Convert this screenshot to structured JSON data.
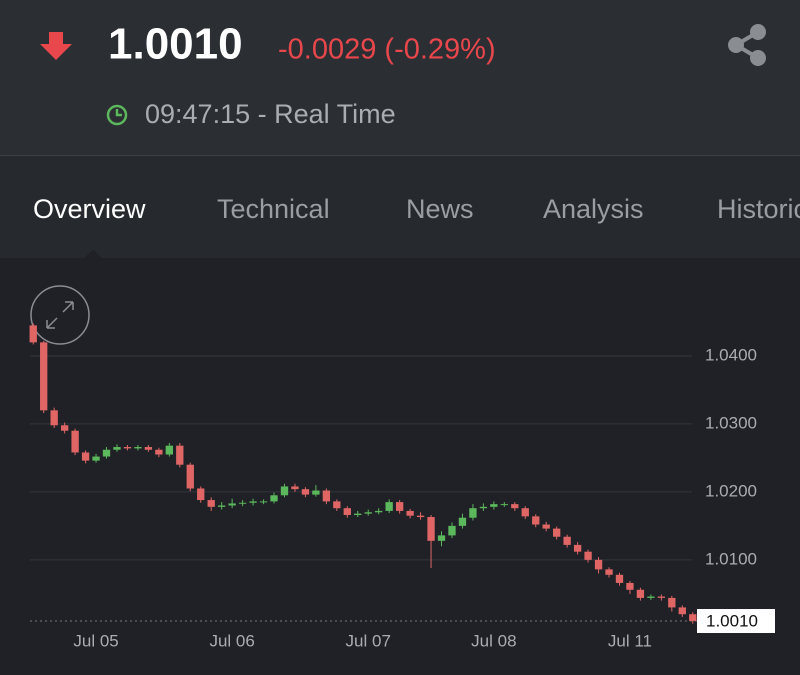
{
  "header": {
    "price": "1.0010",
    "change": "-0.0029 (-0.29%)",
    "time": "09:47:15 - Real Time"
  },
  "tabs": [
    "Overview",
    "Technical",
    "News",
    "Analysis",
    "Historical"
  ],
  "chart_data": {
    "type": "candlestick",
    "categories": [
      null,
      null,
      null,
      null,
      null,
      null,
      "Jul 05",
      null,
      null,
      null,
      null,
      null,
      null,
      null,
      null,
      null,
      null,
      null,
      null,
      "Jul 06",
      null,
      null,
      null,
      null,
      null,
      null,
      null,
      null,
      null,
      null,
      null,
      null,
      "Jul 07",
      null,
      null,
      null,
      null,
      null,
      null,
      null,
      null,
      null,
      null,
      null,
      "Jul 08",
      null,
      null,
      null,
      null,
      null,
      null,
      null,
      null,
      null,
      null,
      null,
      null,
      "Jul 11",
      null,
      null,
      null,
      null,
      null,
      null
    ],
    "open": [
      1.0445,
      1.042,
      1.032,
      1.0298,
      1.029,
      1.0258,
      1.0246,
      1.0252,
      1.0262,
      1.0266,
      1.0264,
      1.0266,
      1.0262,
      1.0255,
      1.0268,
      1.024,
      1.0205,
      1.0188,
      1.0178,
      1.018,
      1.0183,
      1.0184,
      1.0186,
      1.0186,
      1.0195,
      1.0208,
      1.0204,
      1.0196,
      1.0202,
      1.0186,
      1.0176,
      1.0166,
      1.0168,
      1.017,
      1.0172,
      1.0185,
      1.0172,
      1.0165,
      1.0163,
      1.0128,
      1.0136,
      1.015,
      1.0162,
      1.0176,
      1.0178,
      1.0182,
      1.0182,
      1.0176,
      1.0164,
      1.0152,
      1.0146,
      1.0134,
      1.0122,
      1.0112,
      1.01,
      1.0086,
      1.0078,
      1.0066,
      1.0056,
      1.0044,
      1.0046,
      1.0044,
      1.003,
      1.002
    ],
    "high": [
      1.0448,
      1.0422,
      1.0324,
      1.0302,
      1.0293,
      1.0261,
      1.0256,
      1.0266,
      1.027,
      1.0269,
      1.0269,
      1.0269,
      1.0265,
      1.0272,
      1.0272,
      1.0243,
      1.0208,
      1.0192,
      1.0185,
      1.019,
      1.0188,
      1.019,
      1.0189,
      1.0199,
      1.0212,
      1.0212,
      1.0207,
      1.021,
      1.0205,
      1.0189,
      1.0179,
      1.0172,
      1.0174,
      1.0176,
      1.0189,
      1.0188,
      1.0175,
      1.017,
      1.0166,
      1.0142,
      1.0155,
      1.0168,
      1.0182,
      1.0183,
      1.0186,
      1.0185,
      1.0185,
      1.0179,
      1.0167,
      1.0156,
      1.0149,
      1.0137,
      1.0126,
      1.0115,
      1.0104,
      1.0089,
      1.0081,
      1.0069,
      1.0059,
      1.0049,
      1.0049,
      1.0047,
      1.0033,
      1.0023
    ],
    "low": [
      1.0417,
      1.0316,
      1.0294,
      1.0286,
      1.0254,
      1.0242,
      1.0243,
      1.0249,
      1.0259,
      1.0261,
      1.0261,
      1.0259,
      1.0251,
      1.0252,
      1.0236,
      1.0201,
      1.0184,
      1.0172,
      1.0174,
      1.0176,
      1.0179,
      1.018,
      1.0182,
      1.0183,
      1.0192,
      1.02,
      1.0192,
      1.0193,
      1.0182,
      1.0172,
      1.0162,
      1.0163,
      1.0165,
      1.0167,
      1.0169,
      1.0168,
      1.0161,
      1.0159,
      1.0088,
      1.012,
      1.0132,
      1.0146,
      1.0158,
      1.0172,
      1.0174,
      1.0178,
      1.0172,
      1.016,
      1.0148,
      1.0142,
      1.013,
      1.0118,
      1.0108,
      1.0096,
      1.008,
      1.0074,
      1.0062,
      1.005,
      1.004,
      1.0041,
      1.004,
      1.0024,
      1.0016,
      1.0006
    ],
    "close": [
      1.042,
      1.032,
      1.0298,
      1.029,
      1.0258,
      1.0246,
      1.0252,
      1.0262,
      1.0266,
      1.0264,
      1.0266,
      1.0262,
      1.0255,
      1.0268,
      1.024,
      1.0205,
      1.0188,
      1.0178,
      1.018,
      1.0183,
      1.0184,
      1.0186,
      1.0186,
      1.0195,
      1.0208,
      1.0204,
      1.0196,
      1.0202,
      1.0186,
      1.0176,
      1.0166,
      1.0168,
      1.017,
      1.0172,
      1.0185,
      1.0172,
      1.0165,
      1.0163,
      1.0128,
      1.0136,
      1.015,
      1.0162,
      1.0176,
      1.0178,
      1.0182,
      1.0182,
      1.0176,
      1.0164,
      1.0152,
      1.0146,
      1.0134,
      1.0122,
      1.0112,
      1.01,
      1.0086,
      1.0078,
      1.0066,
      1.0056,
      1.0044,
      1.0046,
      1.0044,
      1.003,
      1.002,
      1.001
    ],
    "up_color": "#5cb85c",
    "down_color": "#e06666",
    "ylim": [
      0.996,
      1.05
    ],
    "yticks": [
      {
        "value": 1.01,
        "label": "1.0100"
      },
      {
        "value": 1.02,
        "label": "1.0200"
      },
      {
        "value": 1.03,
        "label": "1.0300"
      },
      {
        "value": 1.04,
        "label": "1.0400"
      }
    ],
    "last_price": {
      "value": 1.001,
      "label": "1.0010"
    },
    "grid": true
  }
}
